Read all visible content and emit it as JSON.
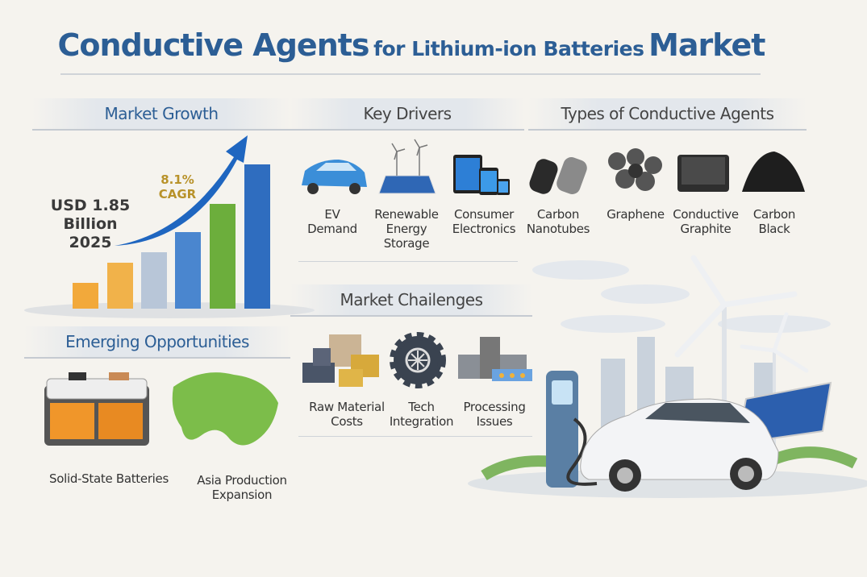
{
  "title": {
    "part1": "Conductive Agents",
    "part2": "for Lithium-ion Batteries",
    "part3": "Market"
  },
  "market_growth": {
    "heading": "Market Growth",
    "value": "USD 1.85",
    "unit": "Billion",
    "year": "2025",
    "cagr": "8.1%",
    "cagr_label": "CAGR"
  },
  "key_drivers": {
    "heading": "Key Drivers",
    "items": [
      {
        "label": "EV Demand",
        "icon": "car-icon"
      },
      {
        "label": "Renewable Energy Storage",
        "icon": "solar-wind-icon"
      },
      {
        "label": "Consumer Electronics",
        "icon": "devices-icon"
      }
    ]
  },
  "types": {
    "heading": "Types of Conductive Agents",
    "items": [
      {
        "label": "Carbon Nanotubes",
        "icon": "nanotubes-icon"
      },
      {
        "label": "Graphene",
        "icon": "graphene-icon"
      },
      {
        "label": "Conductive Graphite",
        "icon": "graphite-icon"
      },
      {
        "label": "Carbon Black",
        "icon": "carbon-black-icon"
      }
    ]
  },
  "challenges": {
    "heading": "Market Chailenges",
    "items": [
      {
        "label": "Raw Material Costs",
        "icon": "materials-icon"
      },
      {
        "label": "Tech Integration",
        "icon": "gear-icon"
      },
      {
        "label": "Processing Issues",
        "icon": "factory-icon"
      }
    ]
  },
  "opportunities": {
    "heading": "Emerging Opportunities",
    "items": [
      {
        "label": "Solid-State Batteries",
        "icon": "battery-icon"
      },
      {
        "label": "Asia Production Expansion",
        "icon": "asia-map-icon"
      }
    ]
  },
  "colors": {
    "title": "#2c5e95",
    "cagr": "#b8922a",
    "bar_orange": "#f0a93a",
    "bar_blue": "#3a78c8",
    "bar_green": "#6aab3a"
  }
}
